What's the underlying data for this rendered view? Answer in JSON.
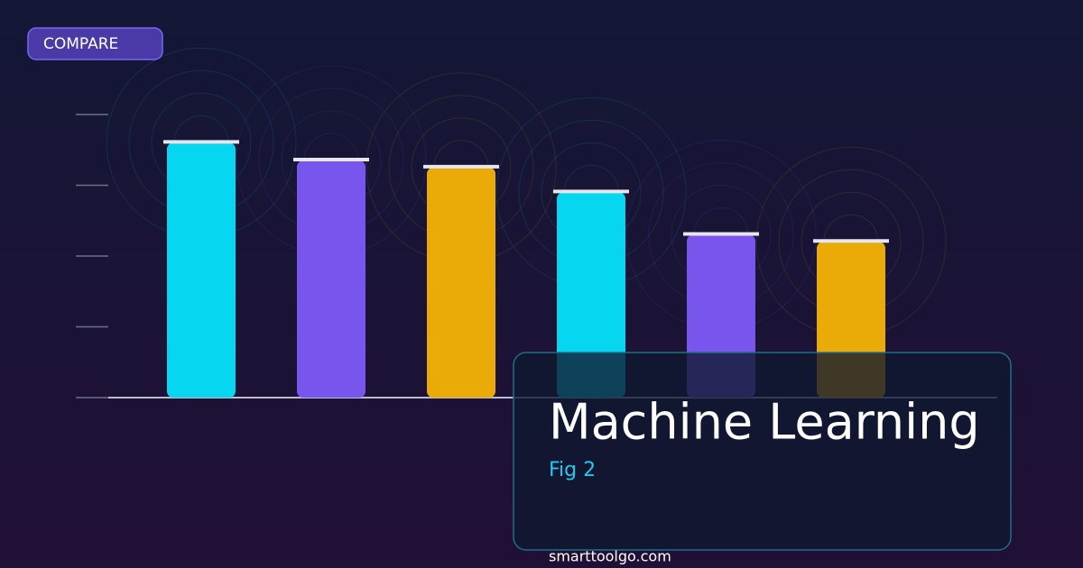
{
  "badge": "COMPARE",
  "chart_data": {
    "type": "bar",
    "categories": [
      null,
      null,
      null,
      null,
      null,
      null
    ],
    "values": [
      3.6,
      3.35,
      3.25,
      2.9,
      2.3,
      2.2
    ],
    "colors": [
      "#06d6f0",
      "#7856ee",
      "#eaaa08",
      "#06d6f0",
      "#7856ee",
      "#eaaa08"
    ],
    "ylim": [
      0,
      4
    ],
    "yticks": [
      0,
      1,
      2,
      3,
      4
    ]
  },
  "panel": {
    "title": "Machine Learning",
    "subtitle": "Fig 2"
  },
  "footer": "smarttoolgo.com"
}
